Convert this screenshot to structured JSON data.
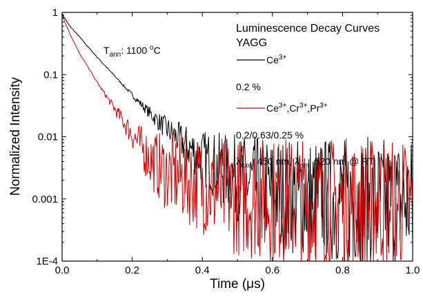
{
  "chart_data": {
    "type": "line",
    "title": "Luminescence Decay Curves",
    "subtitle": "YAGG",
    "xlabel": "Time (μs)",
    "ylabel": "Normalized Intensity",
    "xlim": [
      0.0,
      1.0
    ],
    "ylim": [
      0.0001,
      1
    ],
    "yscale": "log",
    "grid": false,
    "legend_position": "top-right",
    "x_ticks": [
      "0.0",
      "0.2",
      "0.4",
      "0.6",
      "0.8",
      "1.0"
    ],
    "y_ticks": [
      "1E-4",
      "0.001",
      "0.01",
      "0.1",
      "1"
    ],
    "annotation": {
      "t_symbol": "T",
      "t_sub": "ann",
      "t_rest": ": 1100 ",
      "t_deg": "o",
      "t_unit": "C"
    },
    "excitation": {
      "lambda": "λ",
      "exc_sub": "exc",
      "exc_rest": ": 450 nm, ",
      "em_sub": "em",
      "em_rest": ": 520 nm @ RT"
    },
    "series": [
      {
        "name": "Ce3+",
        "label_main": "Ce",
        "label_sup": "3+",
        "concentration": "0.2 %",
        "color": "#000000",
        "x": [
          0.0,
          0.02,
          0.05,
          0.1,
          0.15,
          0.2,
          0.25,
          0.3,
          0.35,
          0.4,
          0.45,
          0.5,
          0.55,
          0.6,
          0.65,
          0.7,
          0.8,
          0.9,
          1.0
        ],
        "y": [
          0.95,
          0.62,
          0.4,
          0.19,
          0.095,
          0.047,
          0.024,
          0.013,
          0.0075,
          0.0047,
          0.0031,
          0.0022,
          0.0017,
          0.00135,
          0.00115,
          0.00105,
          0.00095,
          0.0009,
          0.00088
        ]
      },
      {
        "name": "Ce3+,Cr3+,Pr3+",
        "label_parts": [
          "Ce",
          "3+",
          ",Cr",
          "3+",
          ",Pr",
          "3+"
        ],
        "concentration": "0.2/0.63/0.25 %",
        "color": "#cc0000",
        "x": [
          0.0,
          0.02,
          0.05,
          0.1,
          0.15,
          0.2,
          0.25,
          0.28,
          0.3,
          0.35,
          0.4,
          0.45,
          0.5,
          0.6,
          0.7,
          0.8,
          0.9,
          1.0
        ],
        "y": [
          0.92,
          0.48,
          0.22,
          0.075,
          0.028,
          0.011,
          0.0045,
          0.0032,
          0.0026,
          0.0021,
          0.0017,
          0.0013,
          0.0011,
          0.00095,
          0.0009,
          0.00088,
          0.00085,
          0.00083
        ]
      }
    ]
  }
}
